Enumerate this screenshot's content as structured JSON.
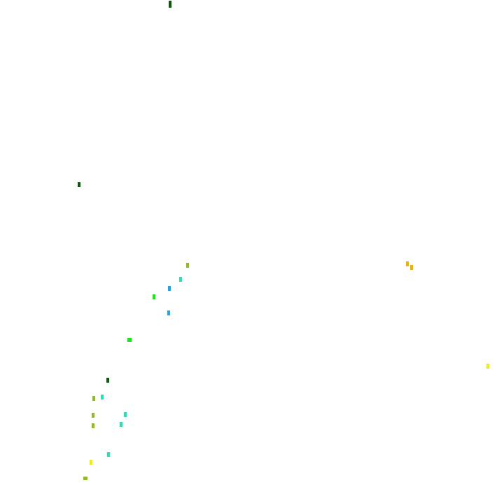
{
  "canvas": {
    "background": "#ffffff",
    "mark_colors": {
      "dark_green": "#0a5a0a",
      "olive_green": "#8cbf1a",
      "cyan": "#1ae8b0",
      "blue": "#1aa8f0",
      "green": "#18e818",
      "orange": "#f0b000",
      "yellow": "#f0f000"
    }
  }
}
